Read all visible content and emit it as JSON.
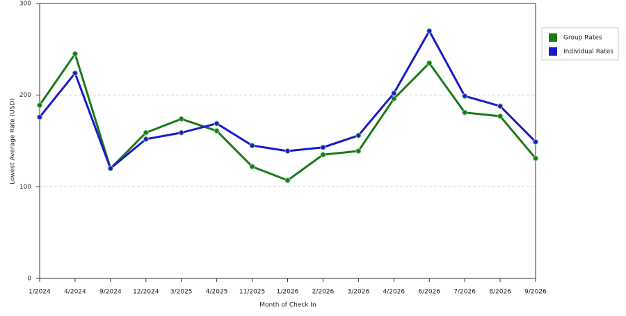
{
  "chart_data": {
    "type": "line",
    "x_label": "Month of Check In",
    "y_label": "Lowest Average Rate (USD)",
    "categories": [
      "1/2024",
      "4/2024",
      "9/2024",
      "12/2024",
      "3/2025",
      "4/2025",
      "11/2025",
      "1/2026",
      "2/2026",
      "3/2026",
      "4/2026",
      "6/2026",
      "7/2026",
      "8/2026",
      "9/2026"
    ],
    "series": [
      {
        "name": "Group Rates",
        "color": "#1a7a1a",
        "values": [
          189,
          245,
          120,
          159,
          174,
          161,
          122,
          107,
          135,
          139,
          196,
          235,
          181,
          177,
          131
        ]
      },
      {
        "name": "Individual Rates",
        "color": "#1a1acc",
        "values": [
          176,
          224,
          120,
          152,
          159,
          169,
          145,
          139,
          143,
          156,
          202,
          270,
          199,
          188,
          149
        ]
      }
    ],
    "ylim": [
      0,
      300
    ],
    "yticks": [
      0,
      100,
      200,
      300
    ],
    "grid": true,
    "legend": "right"
  }
}
